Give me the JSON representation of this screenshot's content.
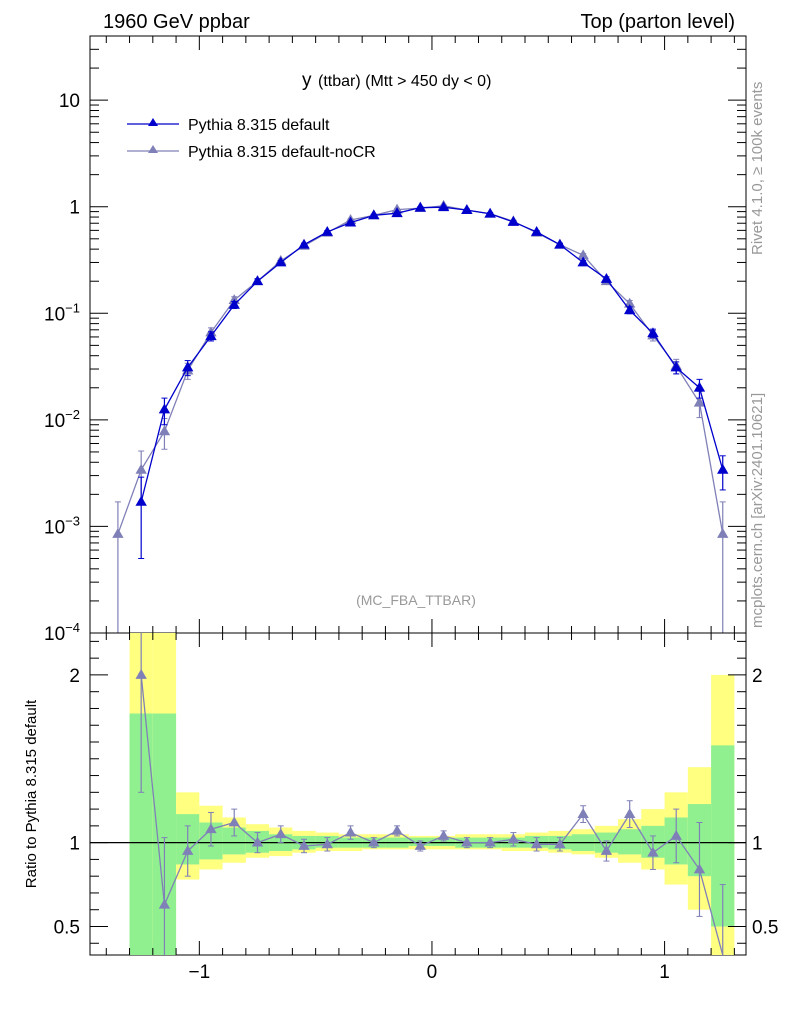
{
  "header": {
    "left": "1960 GeV ppbar",
    "right": "Top (parton level)"
  },
  "side_labels": {
    "right_top": "Rivet 4.1.0, ≥ 100k events",
    "right_bottom": "mcplots.cern.ch [arXiv:2401.10621]"
  },
  "chart_data": {
    "type": "line",
    "title_main": "y",
    "title_rest": "(ttbar) (Mtt > 450 dy < 0)",
    "watermark": "(MC_FBA_TTBAR)",
    "yscale": "log",
    "xlim": [
      -1.47,
      1.35
    ],
    "ylim": [
      0.0001,
      40
    ],
    "yticks": [
      {
        "value": 0.0001,
        "base": "10",
        "exp": "−4"
      },
      {
        "value": 0.001,
        "base": "10",
        "exp": "−3"
      },
      {
        "value": 0.01,
        "base": "10",
        "exp": "−2"
      },
      {
        "value": 0.1,
        "base": "10",
        "exp": "−1"
      },
      {
        "value": 1,
        "base": "1",
        "exp": ""
      },
      {
        "value": 10,
        "base": "10",
        "exp": ""
      }
    ],
    "legend": [
      {
        "name": "Pythia 8.315 default",
        "color": "#0000cc"
      },
      {
        "name": "Pythia 8.315 default-noCR",
        "color": "#8080b8"
      }
    ],
    "series": [
      {
        "name": "Pythia 8.315 default",
        "color": "#0000cc",
        "x": [
          -1.25,
          -1.15,
          -1.05,
          -0.95,
          -0.85,
          -0.75,
          -0.65,
          -0.55,
          -0.45,
          -0.35,
          -0.25,
          -0.15,
          -0.05,
          0.05,
          0.15,
          0.25,
          0.35,
          0.45,
          0.55,
          0.65,
          0.75,
          0.85,
          0.95,
          1.05,
          1.15,
          1.25
        ],
        "y": [
          0.0017,
          0.0125,
          0.031,
          0.061,
          0.12,
          0.2,
          0.3,
          0.44,
          0.58,
          0.71,
          0.83,
          0.87,
          0.98,
          0.99,
          0.93,
          0.86,
          0.72,
          0.58,
          0.44,
          0.3,
          0.21,
          0.107,
          0.065,
          0.031,
          0.02,
          0.0034
        ],
        "err": [
          0.0012,
          0.0035,
          0.005,
          0.006,
          0.009,
          0.01,
          0.012,
          0.015,
          0.017,
          0.018,
          0.02,
          0.02,
          0.022,
          0.022,
          0.02,
          0.02,
          0.018,
          0.017,
          0.015,
          0.012,
          0.01,
          0.008,
          0.006,
          0.004,
          0.004,
          0.0012
        ]
      },
      {
        "name": "Pythia 8.315 default-noCR",
        "color": "#8080b8",
        "x": [
          -1.35,
          -1.25,
          -1.15,
          -1.05,
          -0.95,
          -0.85,
          -0.75,
          -0.65,
          -0.55,
          -0.45,
          -0.35,
          -0.25,
          -0.15,
          -0.05,
          0.05,
          0.15,
          0.25,
          0.35,
          0.45,
          0.55,
          0.65,
          0.75,
          0.85,
          0.95,
          1.05,
          1.15,
          1.25
        ],
        "y": [
          0.00085,
          0.0034,
          0.0078,
          0.029,
          0.066,
          0.133,
          0.2,
          0.31,
          0.43,
          0.57,
          0.75,
          0.83,
          0.94,
          0.97,
          1.02,
          0.93,
          0.86,
          0.73,
          0.57,
          0.44,
          0.35,
          0.2,
          0.123,
          0.062,
          0.032,
          0.0145,
          0.00085
        ],
        "err": [
          0.00085,
          0.0017,
          0.0025,
          0.005,
          0.007,
          0.01,
          0.012,
          0.013,
          0.015,
          0.017,
          0.018,
          0.02,
          0.021,
          0.022,
          0.022,
          0.021,
          0.02,
          0.018,
          0.017,
          0.015,
          0.013,
          0.011,
          0.009,
          0.007,
          0.005,
          0.004,
          0.00085
        ]
      }
    ],
    "ratio": {
      "ylabel": "Ratio to Pythia 8.315 default",
      "ylim": [
        0.33,
        2.25
      ],
      "yticks": [
        {
          "value": 0.5,
          "label": "0.5"
        },
        {
          "value": 1,
          "label": "1"
        },
        {
          "value": 2,
          "label": "2"
        }
      ],
      "xticks": [
        {
          "value": -1,
          "label": "−1"
        },
        {
          "value": 0,
          "label": "0"
        },
        {
          "value": 1,
          "label": "1"
        }
      ],
      "bins_low": [
        -1.3,
        -1.2,
        -1.1,
        -1.0,
        -0.9,
        -0.8,
        -0.7,
        -0.6,
        -0.5,
        -0.4,
        -0.3,
        -0.2,
        -0.1,
        0.0,
        0.1,
        0.2,
        0.3,
        0.4,
        0.5,
        0.6,
        0.7,
        0.8,
        0.9,
        1.0,
        1.1,
        1.2
      ],
      "band_yellow": [
        [
          0.3,
          2.4
        ],
        [
          0.4,
          2.4
        ],
        [
          0.78,
          1.3
        ],
        [
          0.84,
          1.22
        ],
        [
          0.88,
          1.15
        ],
        [
          0.91,
          1.11
        ],
        [
          0.92,
          1.09
        ],
        [
          0.94,
          1.07
        ],
        [
          0.95,
          1.06
        ],
        [
          0.95,
          1.05
        ],
        [
          0.96,
          1.05
        ],
        [
          0.96,
          1.05
        ],
        [
          0.96,
          1.04
        ],
        [
          0.96,
          1.04
        ],
        [
          0.96,
          1.05
        ],
        [
          0.96,
          1.05
        ],
        [
          0.95,
          1.05
        ],
        [
          0.95,
          1.06
        ],
        [
          0.94,
          1.07
        ],
        [
          0.93,
          1.08
        ],
        [
          0.91,
          1.1
        ],
        [
          0.88,
          1.14
        ],
        [
          0.84,
          1.2
        ],
        [
          0.75,
          1.3
        ],
        [
          0.6,
          1.45
        ],
        [
          0.3,
          2.0
        ]
      ],
      "band_green": [
        [
          0.3,
          1.77
        ],
        [
          0.3,
          1.77
        ],
        [
          0.87,
          1.17
        ],
        [
          0.9,
          1.12
        ],
        [
          0.93,
          1.09
        ],
        [
          0.94,
          1.07
        ],
        [
          0.95,
          1.05
        ],
        [
          0.96,
          1.04
        ],
        [
          0.97,
          1.04
        ],
        [
          0.97,
          1.03
        ],
        [
          0.97,
          1.03
        ],
        [
          0.97,
          1.03
        ],
        [
          0.98,
          1.03
        ],
        [
          0.98,
          1.03
        ],
        [
          0.97,
          1.03
        ],
        [
          0.97,
          1.03
        ],
        [
          0.97,
          1.03
        ],
        [
          0.97,
          1.04
        ],
        [
          0.96,
          1.04
        ],
        [
          0.95,
          1.05
        ],
        [
          0.94,
          1.06
        ],
        [
          0.93,
          1.08
        ],
        [
          0.91,
          1.1
        ],
        [
          0.87,
          1.15
        ],
        [
          0.8,
          1.23
        ],
        [
          0.5,
          1.58
        ]
      ],
      "x": [
        -1.25,
        -1.15,
        -1.05,
        -0.95,
        -0.85,
        -0.75,
        -0.65,
        -0.55,
        -0.45,
        -0.35,
        -0.25,
        -0.15,
        -0.05,
        0.05,
        0.15,
        0.25,
        0.35,
        0.45,
        0.55,
        0.65,
        0.75,
        0.85,
        0.95,
        1.05,
        1.15,
        1.25
      ],
      "y": [
        2.0,
        0.63,
        0.95,
        1.08,
        1.12,
        1.0,
        1.05,
        0.98,
        0.99,
        1.06,
        1.0,
        1.07,
        0.98,
        1.04,
        1.0,
        1.0,
        1.02,
        0.99,
        0.99,
        1.17,
        0.95,
        1.17,
        0.94,
        1.04,
        0.84,
        0.25
      ],
      "err": [
        0.7,
        0.4,
        0.15,
        0.1,
        0.08,
        0.06,
        0.05,
        0.04,
        0.04,
        0.04,
        0.03,
        0.03,
        0.03,
        0.03,
        0.03,
        0.03,
        0.04,
        0.04,
        0.04,
        0.05,
        0.06,
        0.08,
        0.1,
        0.16,
        0.28,
        0.5
      ]
    }
  }
}
